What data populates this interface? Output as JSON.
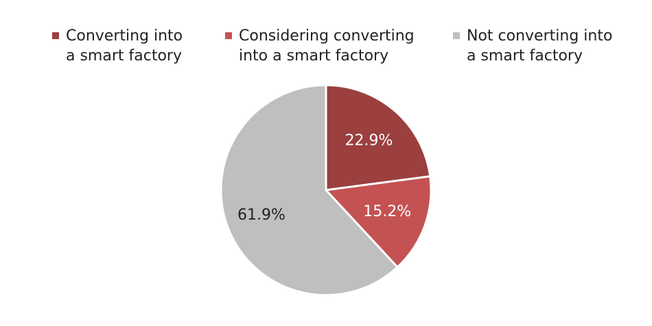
{
  "chart_data": {
    "type": "pie",
    "title": "",
    "legend_position": "top",
    "series": [
      {
        "name": "Converting into\na smart factory",
        "value": 22.9,
        "label": "22.9%",
        "color": "#9b3f3f"
      },
      {
        "name": "Considering converting\ninto a smart factory",
        "value": 15.2,
        "label": "15.2%",
        "color": "#c45252"
      },
      {
        "name": "Not converting into\na smart factory",
        "value": 61.9,
        "label": "61.9%",
        "color": "#bfbfbf"
      }
    ]
  }
}
